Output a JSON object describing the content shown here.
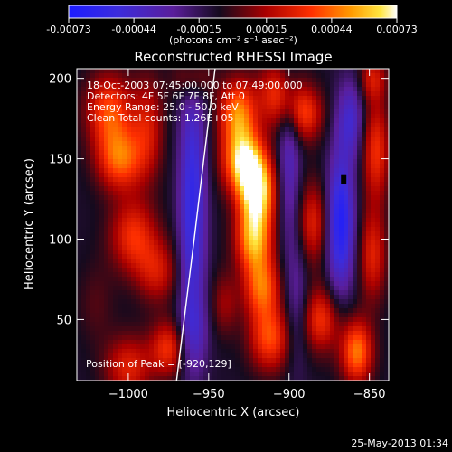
{
  "chart_data": {
    "type": "heatmap",
    "title": "Reconstructed RHESSI Image",
    "xlabel": "Heliocentric X (arcsec)",
    "ylabel": "Heliocentric Y (arcsec)",
    "xlim": [
      -1032,
      -838
    ],
    "ylim": [
      12,
      206
    ],
    "xticks": [
      -1000,
      -950,
      -900,
      -850
    ],
    "yticks": [
      50,
      100,
      150,
      200
    ],
    "colorbar": {
      "min": -0.00073,
      "max": 0.00073,
      "ticks": [
        -0.00073,
        -0.00044,
        -0.00015,
        0.00015,
        0.00044,
        0.00073
      ],
      "tick_labels": [
        "-0.00073",
        "-0.00044",
        "-0.00015",
        "0.00015",
        "0.00044",
        "0.00073"
      ],
      "unit_label": "(photons cm⁻² s⁻¹ asec⁻²)"
    },
    "annotations": [
      "18-Oct-2003 07:45:00.000 to 07:49:00.000",
      "Detectors: 4F 5F 6F 7F 8F, Att 0",
      "Energy Range: 25.0 - 50.0 keV",
      "Clean     Total counts: 1.26E+05"
    ],
    "peak_label": "Position of Peak = [-920,129]",
    "peak": {
      "x": -920,
      "y": 129
    },
    "limb_curve": [
      [
        -970,
        12
      ],
      [
        -964,
        60
      ],
      [
        -959,
        100
      ],
      [
        -953,
        150
      ],
      [
        -946,
        206
      ]
    ],
    "marker": {
      "x": -866,
      "y": 137
    },
    "blobs": [
      {
        "x": -1012,
        "y": 180,
        "sx": 10,
        "sy": 16,
        "v": 0.00045
      },
      {
        "x": -1005,
        "y": 150,
        "sx": 10,
        "sy": 14,
        "v": 0.0005
      },
      {
        "x": -997,
        "y": 102,
        "sx": 10,
        "sy": 16,
        "v": 0.0004
      },
      {
        "x": -1000,
        "y": 20,
        "sx": 10,
        "sy": 14,
        "v": 0.00035
      },
      {
        "x": -988,
        "y": 170,
        "sx": 7,
        "sy": 22,
        "v": 0.0003
      },
      {
        "x": -982,
        "y": 80,
        "sx": 9,
        "sy": 14,
        "v": 0.0003
      },
      {
        "x": -975,
        "y": 32,
        "sx": 8,
        "sy": 12,
        "v": 0.0004
      },
      {
        "x": -1020,
        "y": 60,
        "sx": 8,
        "sy": 18,
        "v": 0.0001
      },
      {
        "x": -960,
        "y": 200,
        "sx": 8,
        "sy": 10,
        "v": 0.0003
      },
      {
        "x": -960,
        "y": 120,
        "sx": 6,
        "sy": 60,
        "v": -0.0005
      },
      {
        "x": -960,
        "y": 40,
        "sx": 7,
        "sy": 16,
        "v": -0.0002
      },
      {
        "x": -932,
        "y": 178,
        "sx": 8,
        "sy": 15,
        "v": 0.00055
      },
      {
        "x": -928,
        "y": 148,
        "sx": 9,
        "sy": 14,
        "v": 0.0007
      },
      {
        "x": -920,
        "y": 129,
        "sx": 8,
        "sy": 15,
        "v": 0.00073
      },
      {
        "x": -922,
        "y": 100,
        "sx": 8,
        "sy": 14,
        "v": 0.0006
      },
      {
        "x": -917,
        "y": 70,
        "sx": 8,
        "sy": 14,
        "v": 0.0005
      },
      {
        "x": -912,
        "y": 38,
        "sx": 9,
        "sy": 14,
        "v": 0.00045
      },
      {
        "x": -940,
        "y": 60,
        "sx": 6,
        "sy": 14,
        "v": 0.0002
      },
      {
        "x": -907,
        "y": 190,
        "sx": 9,
        "sy": 14,
        "v": 0.0004
      },
      {
        "x": -900,
        "y": 150,
        "sx": 5,
        "sy": 40,
        "v": -0.0003
      },
      {
        "x": -895,
        "y": 60,
        "sx": 5,
        "sy": 30,
        "v": -0.0002
      },
      {
        "x": -890,
        "y": 178,
        "sx": 8,
        "sy": 12,
        "v": 0.0004
      },
      {
        "x": -885,
        "y": 110,
        "sx": 7,
        "sy": 18,
        "v": 0.00035
      },
      {
        "x": -880,
        "y": 50,
        "sx": 8,
        "sy": 14,
        "v": 0.0004
      },
      {
        "x": -868,
        "y": 110,
        "sx": 6,
        "sy": 30,
        "v": -0.0006
      },
      {
        "x": -862,
        "y": 175,
        "sx": 6,
        "sy": 18,
        "v": -0.00035
      },
      {
        "x": -858,
        "y": 30,
        "sx": 7,
        "sy": 14,
        "v": 0.00055
      },
      {
        "x": -846,
        "y": 155,
        "sx": 6,
        "sy": 22,
        "v": 0.0004
      },
      {
        "x": -848,
        "y": 90,
        "sx": 6,
        "sy": 20,
        "v": 0.00035
      },
      {
        "x": -848,
        "y": 200,
        "sx": 6,
        "sy": 10,
        "v": 0.0003
      }
    ]
  },
  "footer": {
    "timestamp": "25-May-2013 01:34"
  }
}
